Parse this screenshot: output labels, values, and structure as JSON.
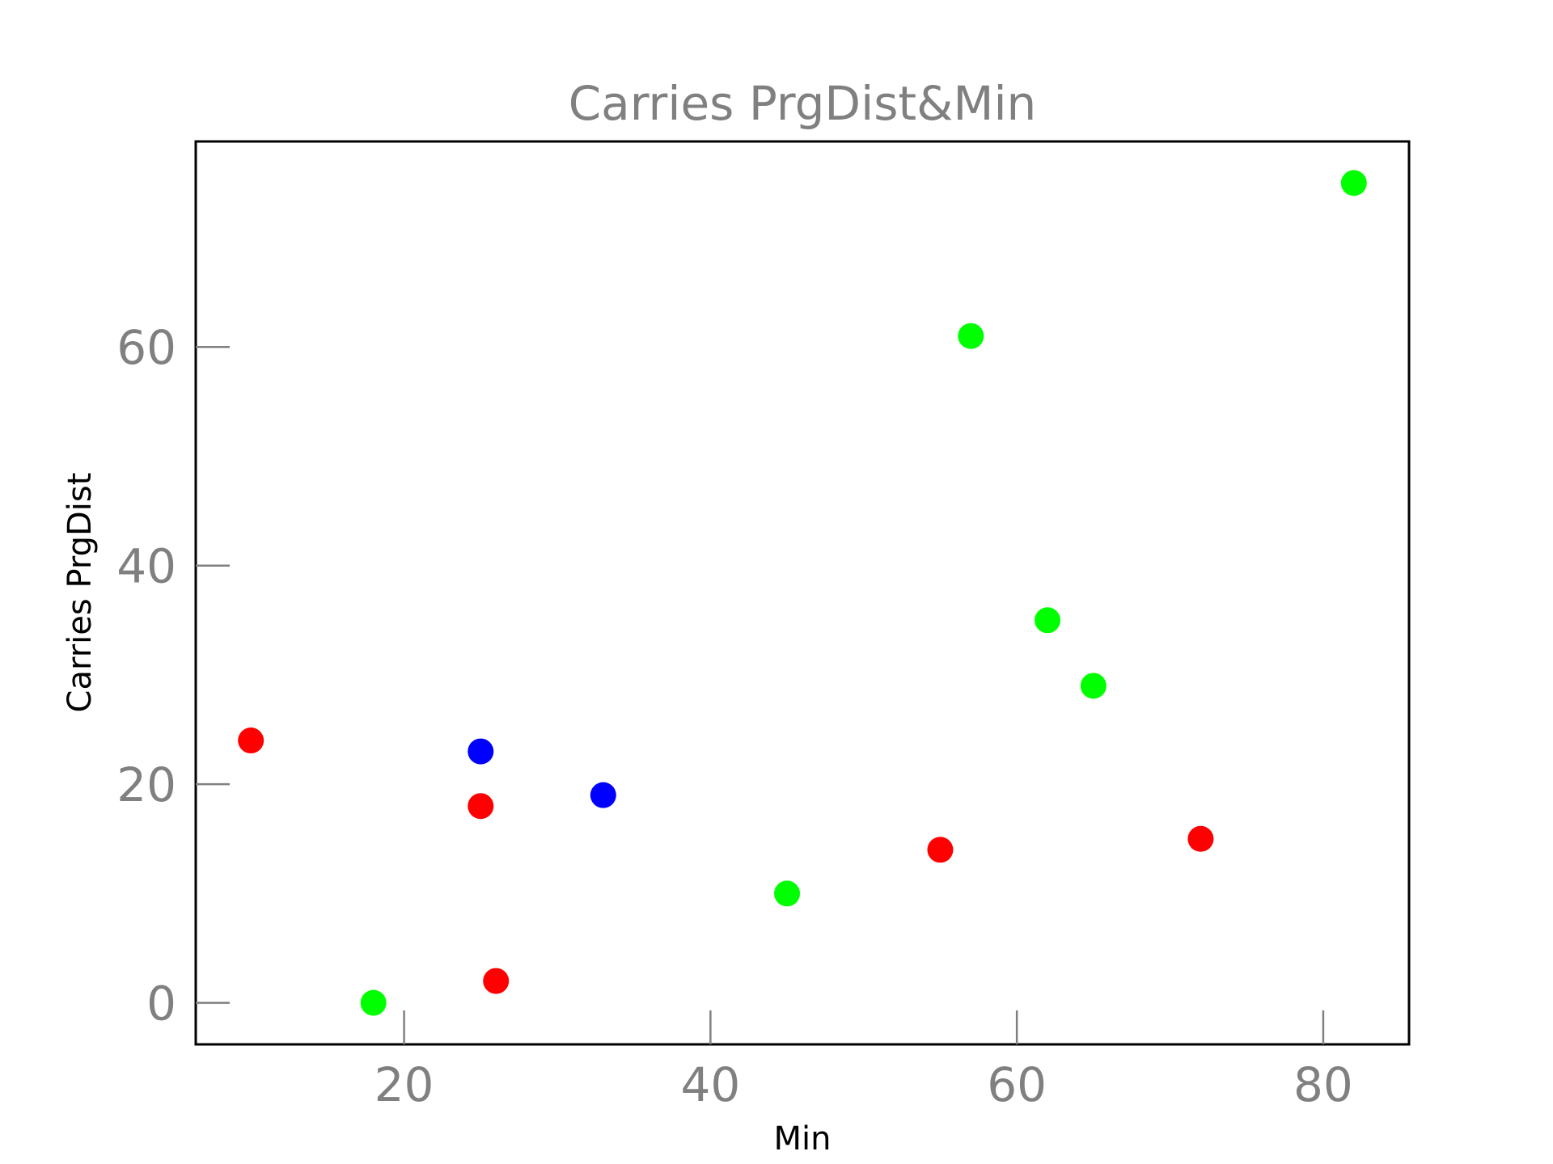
{
  "chart_data": {
    "type": "scatter",
    "title": "Carries PrgDist&Min",
    "xlabel": "Min",
    "ylabel": "Carries PrgDist",
    "xlim": [
      6.4,
      85.6
    ],
    "ylim": [
      -3.8,
      78.8
    ],
    "xticks": [
      20,
      40,
      60,
      80
    ],
    "yticks": [
      0,
      20,
      40,
      60
    ],
    "grid": false,
    "points": [
      {
        "x": 10,
        "y": 24,
        "color": "#ff0000"
      },
      {
        "x": 18,
        "y": 0,
        "color": "#00ff00"
      },
      {
        "x": 25,
        "y": 23,
        "color": "#0000ff"
      },
      {
        "x": 25,
        "y": 18,
        "color": "#ff0000"
      },
      {
        "x": 26,
        "y": 2,
        "color": "#ff0000"
      },
      {
        "x": 33,
        "y": 19,
        "color": "#0000ff"
      },
      {
        "x": 45,
        "y": 10,
        "color": "#00ff00"
      },
      {
        "x": 55,
        "y": 14,
        "color": "#ff0000"
      },
      {
        "x": 57,
        "y": 61,
        "color": "#00ff00"
      },
      {
        "x": 62,
        "y": 35,
        "color": "#00ff00"
      },
      {
        "x": 65,
        "y": 29,
        "color": "#00ff00"
      },
      {
        "x": 72,
        "y": 15,
        "color": "#ff0000"
      },
      {
        "x": 82,
        "y": 75,
        "color": "#00ff00"
      }
    ]
  }
}
